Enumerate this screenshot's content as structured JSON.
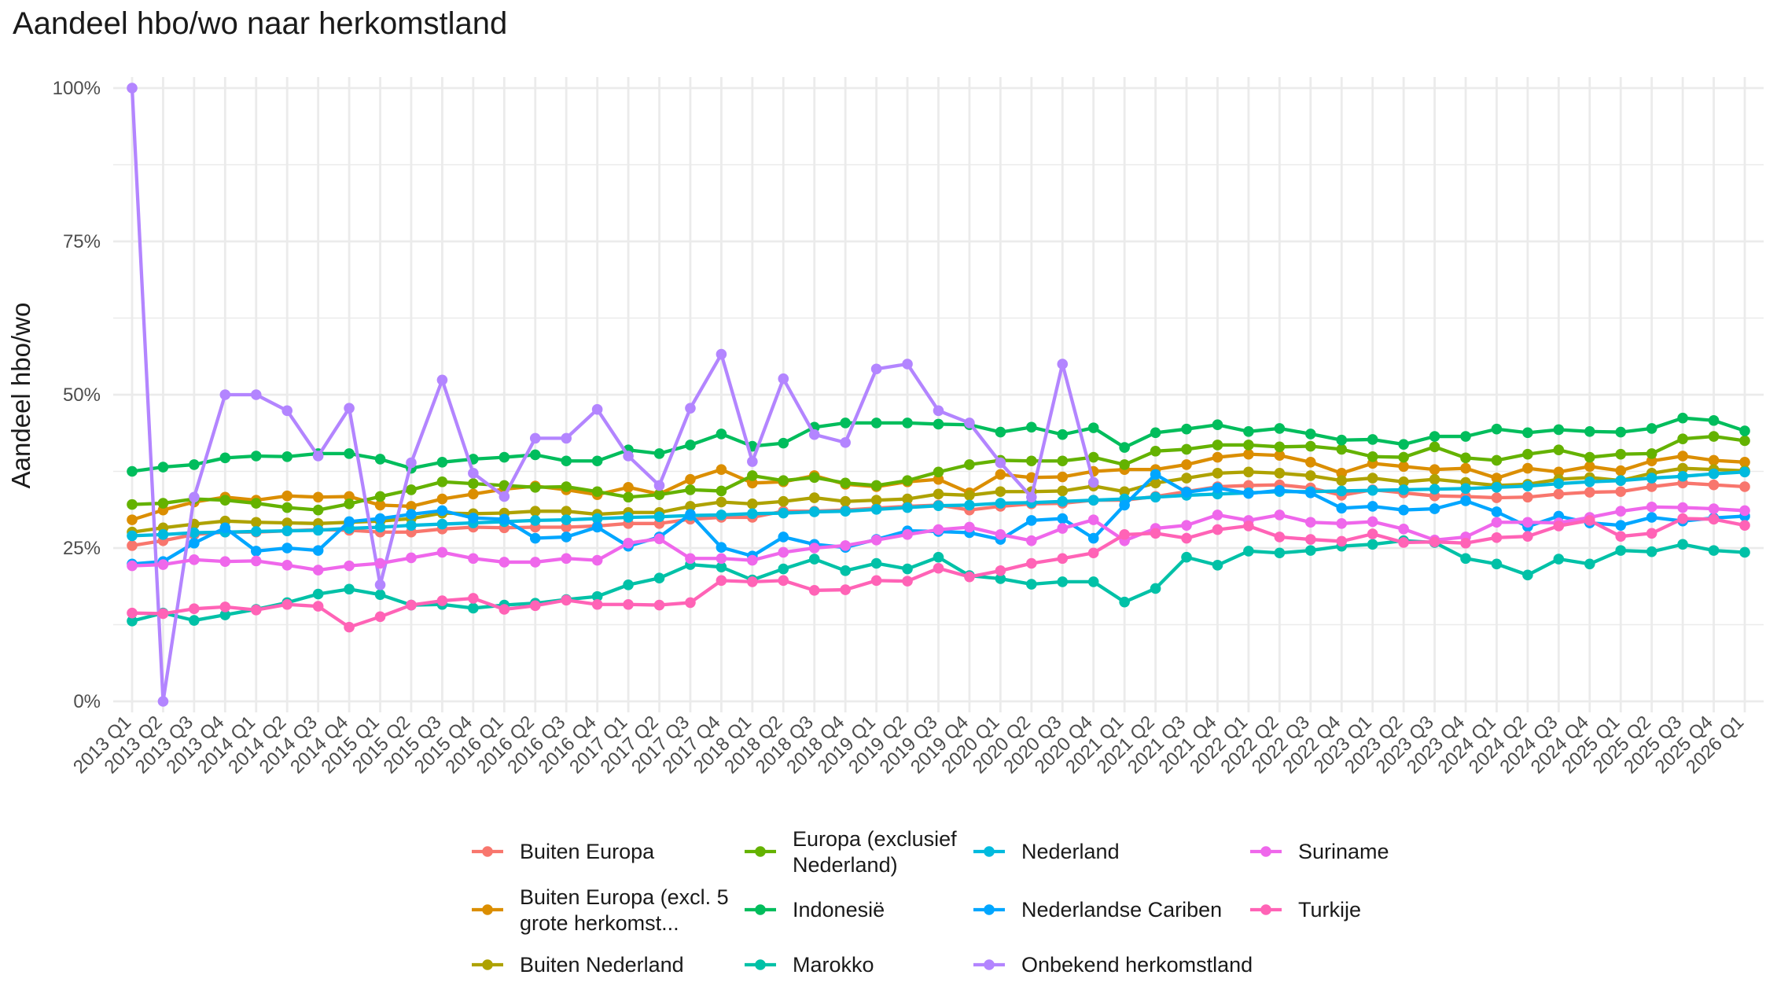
{
  "chart_data": {
    "type": "line",
    "title": "Aandeel hbo/wo naar herkomstland",
    "xlabel": "",
    "ylabel": "Aandeel hbo/wo",
    "ylim": [
      0,
      1
    ],
    "yticks": [
      0,
      0.25,
      0.5,
      0.75,
      1
    ],
    "ytick_labels": [
      "0%",
      "25%",
      "50%",
      "75%",
      "100%"
    ],
    "grid": true,
    "legend_position": "bottom",
    "x": [
      "2013 Q1",
      "2013 Q2",
      "2013 Q3",
      "2013 Q4",
      "2014 Q1",
      "2014 Q2",
      "2014 Q3",
      "2014 Q4",
      "2015 Q1",
      "2015 Q2",
      "2015 Q3",
      "2015 Q4",
      "2016 Q1",
      "2016 Q2",
      "2016 Q3",
      "2016 Q4",
      "2017 Q1",
      "2017 Q2",
      "2017 Q3",
      "2017 Q4",
      "2018 Q1",
      "2018 Q2",
      "2018 Q3",
      "2018 Q4",
      "2019 Q1",
      "2019 Q2",
      "2019 Q3",
      "2019 Q4",
      "2020 Q1",
      "2020 Q2",
      "2020 Q3",
      "2020 Q4",
      "2021 Q1",
      "2021 Q2",
      "2021 Q3",
      "2021 Q4",
      "2022 Q1",
      "2022 Q2",
      "2022 Q3",
      "2022 Q4",
      "2023 Q1",
      "2023 Q2",
      "2023 Q3",
      "2023 Q4",
      "2024 Q1",
      "2024 Q2",
      "2024 Q3",
      "2024 Q4",
      "2025 Q1",
      "2025 Q2",
      "2025 Q3",
      "2025 Q4",
      "2026 Q1"
    ],
    "series": [
      {
        "name": "Buiten Europa",
        "color": "#F8766D",
        "values": [
          0.254,
          0.262,
          0.272,
          0.276,
          0.276,
          0.278,
          0.28,
          0.279,
          0.276,
          0.276,
          0.281,
          0.284,
          0.283,
          0.284,
          0.284,
          0.286,
          0.29,
          0.29,
          0.297,
          0.3,
          0.3,
          0.31,
          0.31,
          0.312,
          0.315,
          0.318,
          0.32,
          0.312,
          0.318,
          0.322,
          0.323,
          0.328,
          0.328,
          0.334,
          0.342,
          0.35,
          0.352,
          0.353,
          0.348,
          0.336,
          0.345,
          0.34,
          0.335,
          0.334,
          0.332,
          0.333,
          0.338,
          0.341,
          0.342,
          0.35,
          0.356,
          0.353,
          0.35
        ]
      },
      {
        "name": "Buiten Europa (excl. 5 grote herkomst...",
        "color": "#DB8E00",
        "values": [
          0.296,
          0.312,
          0.325,
          0.333,
          0.328,
          0.335,
          0.333,
          0.334,
          0.32,
          0.318,
          0.33,
          0.338,
          0.346,
          0.351,
          0.345,
          0.337,
          0.349,
          0.338,
          0.362,
          0.378,
          0.356,
          0.358,
          0.368,
          0.354,
          0.35,
          0.358,
          0.362,
          0.34,
          0.37,
          0.365,
          0.366,
          0.375,
          0.378,
          0.378,
          0.386,
          0.398,
          0.403,
          0.401,
          0.39,
          0.372,
          0.388,
          0.383,
          0.378,
          0.38,
          0.364,
          0.38,
          0.374,
          0.383,
          0.376,
          0.392,
          0.4,
          0.393,
          0.39
        ]
      },
      {
        "name": "Buiten Nederland",
        "color": "#AEA200",
        "values": [
          0.276,
          0.283,
          0.289,
          0.294,
          0.292,
          0.291,
          0.29,
          0.292,
          0.294,
          0.298,
          0.307,
          0.306,
          0.307,
          0.31,
          0.31,
          0.305,
          0.308,
          0.308,
          0.318,
          0.325,
          0.322,
          0.326,
          0.332,
          0.326,
          0.328,
          0.33,
          0.338,
          0.336,
          0.342,
          0.342,
          0.343,
          0.351,
          0.342,
          0.356,
          0.364,
          0.372,
          0.374,
          0.372,
          0.368,
          0.36,
          0.364,
          0.358,
          0.362,
          0.357,
          0.352,
          0.354,
          0.362,
          0.365,
          0.36,
          0.372,
          0.38,
          0.378,
          0.376
        ]
      },
      {
        "name": "Europa (exclusief Nederland)",
        "color": "#64B200",
        "values": [
          0.321,
          0.323,
          0.33,
          0.328,
          0.323,
          0.316,
          0.312,
          0.322,
          0.334,
          0.345,
          0.358,
          0.355,
          0.352,
          0.349,
          0.35,
          0.342,
          0.333,
          0.337,
          0.345,
          0.343,
          0.368,
          0.36,
          0.365,
          0.356,
          0.352,
          0.36,
          0.374,
          0.386,
          0.393,
          0.392,
          0.392,
          0.398,
          0.386,
          0.408,
          0.411,
          0.418,
          0.418,
          0.415,
          0.416,
          0.411,
          0.399,
          0.398,
          0.415,
          0.397,
          0.393,
          0.403,
          0.41,
          0.398,
          0.403,
          0.404,
          0.428,
          0.432,
          0.425
        ]
      },
      {
        "name": "Indonesië",
        "color": "#00BD5C",
        "values": [
          0.375,
          0.382,
          0.386,
          0.397,
          0.4,
          0.399,
          0.404,
          0.404,
          0.395,
          0.38,
          0.39,
          0.395,
          0.398,
          0.402,
          0.392,
          0.392,
          0.41,
          0.404,
          0.418,
          0.436,
          0.416,
          0.421,
          0.447,
          0.454,
          0.454,
          0.454,
          0.452,
          0.451,
          0.439,
          0.447,
          0.435,
          0.446,
          0.414,
          0.438,
          0.444,
          0.451,
          0.44,
          0.445,
          0.436,
          0.426,
          0.427,
          0.419,
          0.432,
          0.432,
          0.444,
          0.438,
          0.443,
          0.44,
          0.439,
          0.445,
          0.462,
          0.458,
          0.441
        ]
      },
      {
        "name": "Marokko",
        "color": "#00C1A7",
        "values": [
          0.131,
          0.144,
          0.132,
          0.141,
          0.15,
          0.161,
          0.175,
          0.183,
          0.174,
          0.157,
          0.158,
          0.152,
          0.157,
          0.16,
          0.166,
          0.171,
          0.19,
          0.201,
          0.223,
          0.219,
          0.198,
          0.216,
          0.232,
          0.213,
          0.225,
          0.216,
          0.235,
          0.205,
          0.2,
          0.191,
          0.195,
          0.195,
          0.162,
          0.184,
          0.235,
          0.222,
          0.245,
          0.242,
          0.246,
          0.253,
          0.256,
          0.262,
          0.259,
          0.233,
          0.224,
          0.206,
          0.232,
          0.224,
          0.246,
          0.244,
          0.256,
          0.246,
          0.243
        ]
      },
      {
        "name": "Nederland",
        "color": "#00BADE",
        "values": [
          0.27,
          0.272,
          0.275,
          0.276,
          0.277,
          0.278,
          0.279,
          0.282,
          0.284,
          0.287,
          0.289,
          0.291,
          0.293,
          0.295,
          0.296,
          0.298,
          0.3,
          0.301,
          0.303,
          0.304,
          0.306,
          0.307,
          0.309,
          0.31,
          0.313,
          0.316,
          0.319,
          0.32,
          0.323,
          0.324,
          0.326,
          0.328,
          0.33,
          0.333,
          0.336,
          0.338,
          0.34,
          0.342,
          0.342,
          0.343,
          0.344,
          0.345,
          0.346,
          0.347,
          0.349,
          0.351,
          0.355,
          0.358,
          0.36,
          0.364,
          0.367,
          0.371,
          0.374
        ]
      },
      {
        "name": "Nederlandse Cariben",
        "color": "#00A6FF",
        "values": [
          0.224,
          0.228,
          0.258,
          0.283,
          0.245,
          0.25,
          0.246,
          0.293,
          0.298,
          0.305,
          0.311,
          0.299,
          0.297,
          0.266,
          0.268,
          0.284,
          0.253,
          0.268,
          0.305,
          0.251,
          0.237,
          0.268,
          0.256,
          0.251,
          0.264,
          0.278,
          0.277,
          0.275,
          0.264,
          0.295,
          0.298,
          0.266,
          0.32,
          0.37,
          0.341,
          0.348,
          0.339,
          0.344,
          0.34,
          0.315,
          0.318,
          0.312,
          0.314,
          0.327,
          0.309,
          0.285,
          0.302,
          0.291,
          0.287,
          0.3,
          0.294,
          0.299,
          0.302
        ]
      },
      {
        "name": "Onbekend herkomstland",
        "color": "#B385FF",
        "values": [
          1.0,
          0.0,
          0.333,
          0.5,
          0.5,
          0.474,
          0.4,
          0.478,
          0.19,
          0.389,
          0.524,
          0.372,
          0.334,
          0.429,
          0.429,
          0.476,
          0.4,
          0.352,
          0.478,
          0.566,
          0.391,
          0.526,
          0.435,
          0.422,
          0.542,
          0.55,
          0.474,
          0.454,
          0.389,
          0.333,
          0.55,
          0.357,
          null,
          null,
          null,
          null,
          null,
          null,
          null,
          null,
          null,
          null,
          null,
          null,
          null,
          null,
          null,
          null,
          null,
          null,
          null,
          null,
          null
        ]
      },
      {
        "name": "Suriname",
        "color": "#EF67EB",
        "values": [
          0.221,
          0.223,
          0.231,
          0.228,
          0.229,
          0.222,
          0.214,
          0.221,
          0.225,
          0.234,
          0.243,
          0.233,
          0.227,
          0.227,
          0.233,
          0.23,
          0.258,
          0.265,
          0.233,
          0.233,
          0.23,
          0.243,
          0.25,
          0.254,
          0.263,
          0.272,
          0.28,
          0.284,
          0.272,
          0.262,
          0.282,
          0.296,
          0.262,
          0.282,
          0.287,
          0.304,
          0.295,
          0.304,
          0.292,
          0.29,
          0.293,
          0.281,
          0.263,
          0.268,
          0.292,
          0.292,
          0.291,
          0.3,
          0.31,
          0.317,
          0.316,
          0.314,
          0.311
        ]
      },
      {
        "name": "Turkije",
        "color": "#FF63B6",
        "values": [
          0.144,
          0.143,
          0.151,
          0.154,
          0.149,
          0.158,
          0.155,
          0.121,
          0.138,
          0.157,
          0.164,
          0.168,
          0.15,
          0.156,
          0.165,
          0.158,
          0.158,
          0.157,
          0.161,
          0.197,
          0.195,
          0.197,
          0.181,
          0.182,
          0.197,
          0.196,
          0.217,
          0.203,
          0.213,
          0.225,
          0.233,
          0.242,
          0.272,
          0.274,
          0.266,
          0.28,
          0.286,
          0.268,
          0.264,
          0.261,
          0.273,
          0.259,
          0.26,
          0.258,
          0.267,
          0.269,
          0.286,
          0.295,
          0.269,
          0.274,
          0.298,
          0.297,
          0.287
        ]
      }
    ]
  }
}
